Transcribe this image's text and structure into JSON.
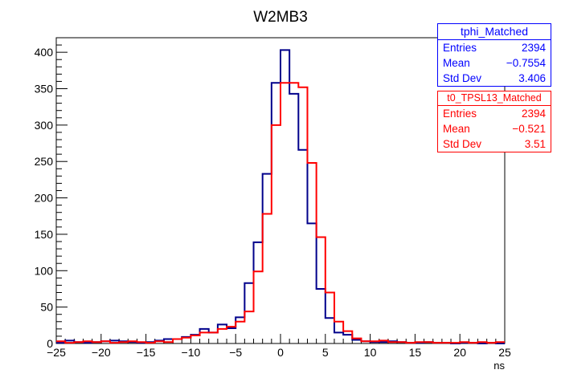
{
  "chart_data": {
    "type": "histogram-step",
    "title": "W2MB3",
    "xlabel": "ns",
    "ylabel": "",
    "xlim": [
      -25,
      25
    ],
    "ylim": [
      0,
      420
    ],
    "bin_width": 1,
    "x_ticks": [
      "−25",
      "−20",
      "−15",
      "−10",
      "−5",
      "0",
      "5",
      "10",
      "15",
      "20",
      "25"
    ],
    "x_tick_values": [
      -25,
      -20,
      -15,
      -10,
      -5,
      0,
      5,
      10,
      15,
      20,
      25
    ],
    "y_ticks": [
      "0",
      "50",
      "100",
      "150",
      "200",
      "250",
      "300",
      "350",
      "400"
    ],
    "y_tick_values": [
      0,
      50,
      100,
      150,
      200,
      250,
      300,
      350,
      400
    ],
    "series": [
      {
        "name": "tphi_Matched",
        "color": "#00008b",
        "bin_low_edges": [
          -25,
          -24,
          -23,
          -22,
          -21,
          -20,
          -19,
          -18,
          -17,
          -16,
          -15,
          -14,
          -13,
          -12,
          -11,
          -10,
          -9,
          -8,
          -7,
          -6,
          -5,
          -4,
          -3,
          -2,
          -1,
          0,
          1,
          2,
          3,
          4,
          5,
          6,
          7,
          8,
          9,
          10,
          11,
          12,
          13,
          14,
          15,
          16,
          17,
          18,
          19,
          20,
          21,
          22,
          23,
          24
        ],
        "values": [
          1,
          4,
          2,
          1,
          2,
          3,
          4,
          3,
          2,
          1,
          2,
          4,
          6,
          6,
          9,
          12,
          20,
          15,
          26,
          21,
          36,
          83,
          139,
          233,
          358,
          403,
          343,
          266,
          165,
          75,
          35,
          15,
          12,
          5,
          3,
          2,
          2,
          3,
          2,
          1,
          1,
          2,
          1,
          1,
          0,
          1,
          1,
          0,
          1,
          0
        ]
      },
      {
        "name": "t0_TPSL13_Matched",
        "color": "#ff0000",
        "bin_low_edges": [
          -25,
          -24,
          -23,
          -22,
          -21,
          -20,
          -19,
          -18,
          -17,
          -16,
          -15,
          -14,
          -13,
          -12,
          -11,
          -10,
          -9,
          -8,
          -7,
          -6,
          -5,
          -4,
          -3,
          -2,
          -1,
          0,
          1,
          2,
          3,
          4,
          5,
          6,
          7,
          8,
          9,
          10,
          11,
          12,
          13,
          14,
          15,
          16,
          17,
          18,
          19,
          20,
          21,
          22,
          23,
          24
        ],
        "values": [
          3,
          1,
          2,
          3,
          2,
          3,
          1,
          2,
          3,
          2,
          1,
          3,
          2,
          6,
          8,
          11,
          15,
          15,
          20,
          23,
          30,
          44,
          99,
          178,
          300,
          358,
          358,
          352,
          248,
          146,
          70,
          30,
          17,
          7,
          3,
          3,
          4,
          2,
          2,
          1,
          2,
          2,
          1,
          1,
          1,
          2,
          1,
          2,
          1,
          2
        ]
      }
    ],
    "stats": [
      {
        "title": "tphi_Matched",
        "color": "#0000ff",
        "rows": [
          {
            "label": "Entries",
            "value": "2394"
          },
          {
            "label": "Mean",
            "value": "−0.7554"
          },
          {
            "label": "Std Dev",
            "value": "3.406"
          }
        ]
      },
      {
        "title": "t0_TPSL13_Matched",
        "color": "#ff0000",
        "rows": [
          {
            "label": "Entries",
            "value": "2394"
          },
          {
            "label": "Mean",
            "value": "−0.521"
          },
          {
            "label": "Std Dev",
            "value": "3.51"
          }
        ]
      }
    ]
  }
}
